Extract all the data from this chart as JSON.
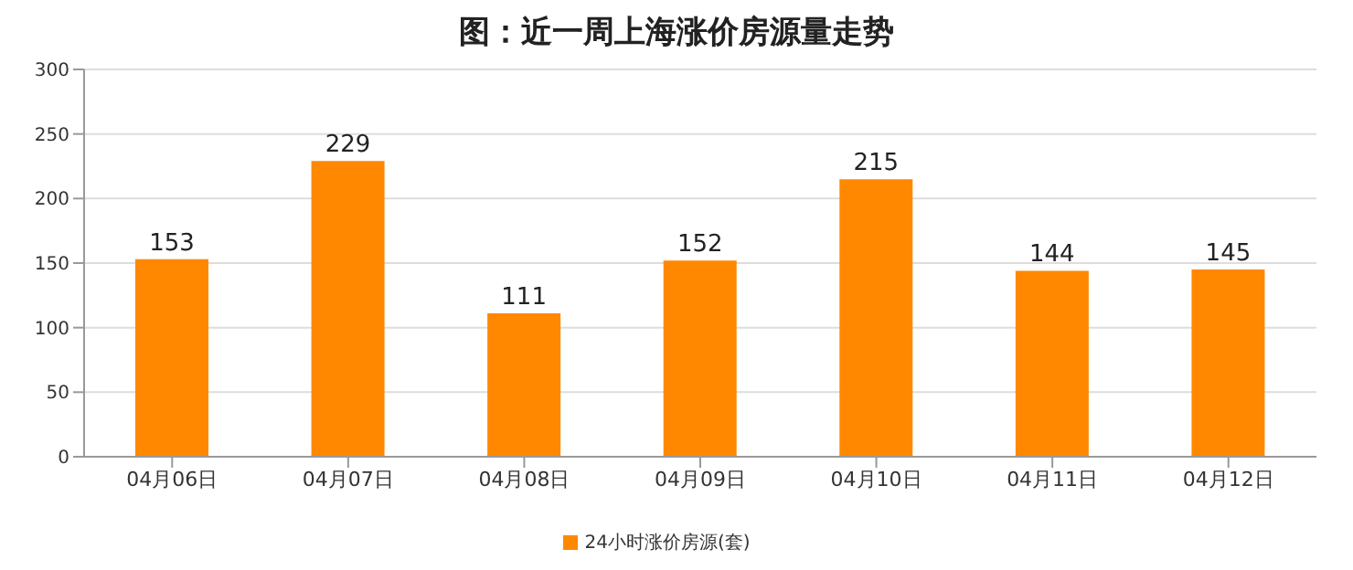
{
  "chart_data": {
    "type": "bar",
    "title": "图：近一周上海涨价房源量走势",
    "categories": [
      "04月06日",
      "04月07日",
      "04月08日",
      "04月09日",
      "04月10日",
      "04月11日",
      "04月12日"
    ],
    "series": [
      {
        "name": "24小时涨价房源(套)",
        "color": "#ff8800",
        "values": [
          153,
          229,
          111,
          152,
          215,
          144,
          145
        ]
      }
    ],
    "ylim": [
      0,
      300
    ],
    "yticks": [
      0,
      50,
      100,
      150,
      200,
      250,
      300
    ],
    "grid": "y",
    "legend": "bottom",
    "data_labels": true
  }
}
